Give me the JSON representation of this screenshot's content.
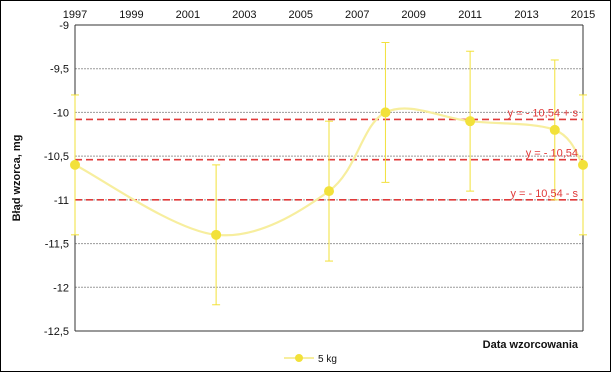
{
  "chart_data": {
    "type": "scatter",
    "title": "",
    "xlabel": "Data wzorcowania",
    "ylabel": "Błąd wzorca, mg",
    "xlim": [
      1997,
      2015
    ],
    "ylim": [
      -12.5,
      -9
    ],
    "x_ticks": [
      "1997",
      "1999",
      "2001",
      "2003",
      "2005",
      "2007",
      "2009",
      "2011",
      "2013",
      "2015"
    ],
    "y_ticks": [
      "-9",
      "-9,5",
      "-10",
      "-10,5",
      "-11",
      "-11,5",
      "-12",
      "-12,5"
    ],
    "y_tick_values": [
      -9,
      -9.5,
      -10,
      -10.5,
      -11,
      -11.5,
      -12,
      -12.5
    ],
    "grid": "horizontal",
    "smoothed_line": true,
    "series": [
      {
        "name": "5 kg",
        "color": "#f2e13a",
        "line_color": "#f7ee9e",
        "x": [
          1997,
          2002,
          2006,
          2008,
          2011,
          2014,
          2015
        ],
        "y": [
          -10.6,
          -11.4,
          -10.9,
          -10.0,
          -10.1,
          -10.2,
          -10.6
        ],
        "error": [
          0.8,
          0.8,
          0.8,
          0.8,
          0.8,
          0.8,
          0.8
        ]
      }
    ],
    "reference_lines": [
      {
        "label": "y =  - 10,54 + s",
        "y": -10.08,
        "color": "#e03a3a",
        "style": "dashed"
      },
      {
        "label": "y =  - 10,54",
        "y": -10.54,
        "color": "#e03a3a",
        "style": "dashed"
      },
      {
        "label": "y =  - 10,54 - s",
        "y": -11.0,
        "color": "#e03a3a",
        "style": "dashed"
      }
    ],
    "legend": {
      "position": "bottom",
      "entries": [
        "5 kg"
      ]
    }
  }
}
